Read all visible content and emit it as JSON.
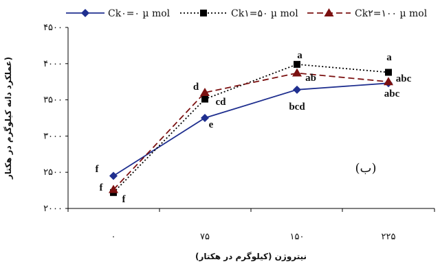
{
  "chart_data": {
    "type": "line",
    "xlabel": "نیتروژن (کیلوگرم در هکتار)",
    "ylabel": "عملکرد دانه کیلوگرم در هکتار)",
    "categories": [
      "۰",
      "۷۵",
      "۱۵۰",
      "۲۲۵"
    ],
    "x": [
      0,
      75,
      150,
      225
    ],
    "ylim": [
      2000,
      4500
    ],
    "yticks": [
      2000,
      2500,
      3000,
      3500,
      4000,
      4500
    ],
    "ytick_labels": [
      "۲۰۰۰",
      "۲۵۰۰",
      "۳۰۰۰",
      "۳۵۰۰",
      "۴۰۰۰",
      "۴۵۰۰"
    ],
    "grid": false,
    "legend_position": "top",
    "panel_label": "(ب)",
    "series": [
      {
        "name": "Ck۰=۰ µ mol",
        "values": [
          2450,
          3250,
          3640,
          3730
        ],
        "color": "#1f2f8f",
        "marker": "diamond",
        "dash": "solid",
        "letters": [
          "f",
          "e",
          "bcd",
          "abc"
        ]
      },
      {
        "name": "Ck۱=۵۰ µ mol",
        "values": [
          2220,
          3510,
          3990,
          3880
        ],
        "color": "#000000",
        "marker": "square",
        "dash": "dotted",
        "letters": [
          "f",
          "cd",
          "a",
          "a"
        ]
      },
      {
        "name": "Ck۲=۱۰۰ µ mol",
        "values": [
          2260,
          3600,
          3870,
          3750
        ],
        "color": "#7b1010",
        "marker": "triangle",
        "dash": "dashed",
        "letters": [
          "f",
          "d",
          "ab",
          "abc"
        ]
      }
    ]
  }
}
